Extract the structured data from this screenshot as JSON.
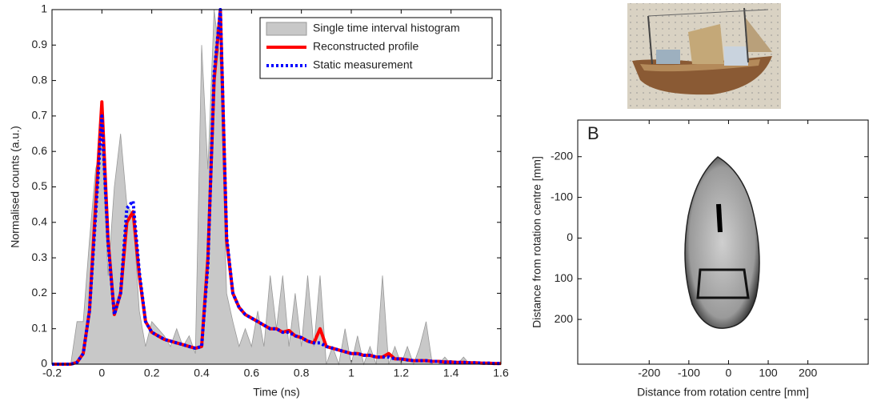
{
  "chart_data": [
    {
      "type": "line",
      "xlabel": "Time (ns)",
      "ylabel": "Normalised counts (a.u.)",
      "x": [
        -0.2,
        -0.175,
        -0.15,
        -0.125,
        -0.1,
        -0.075,
        -0.05,
        -0.025,
        0,
        0.025,
        0.05,
        0.075,
        0.1,
        0.125,
        0.15,
        0.175,
        0.2,
        0.225,
        0.25,
        0.275,
        0.3,
        0.325,
        0.35,
        0.375,
        0.4,
        0.425,
        0.45,
        0.475,
        0.5,
        0.525,
        0.55,
        0.575,
        0.6,
        0.625,
        0.65,
        0.675,
        0.7,
        0.725,
        0.75,
        0.775,
        0.8,
        0.825,
        0.85,
        0.875,
        0.9,
        0.925,
        0.95,
        0.975,
        1,
        1.025,
        1.05,
        1.075,
        1.1,
        1.125,
        1.15,
        1.175,
        1.2,
        1.225,
        1.25,
        1.275,
        1.3,
        1.325,
        1.35,
        1.375,
        1.4,
        1.425,
        1.45,
        1.475,
        1.5,
        1.525,
        1.55,
        1.575,
        1.6
      ],
      "series": [
        {
          "name": "Single time interval histogram",
          "color": "#c8c8c8",
          "style": "area",
          "values": [
            0,
            0,
            0,
            0,
            0.12,
            0.12,
            0.35,
            0.55,
            0.62,
            0.25,
            0.5,
            0.65,
            0.45,
            0.42,
            0.15,
            0.05,
            0.12,
            0.1,
            0.08,
            0.05,
            0.1,
            0.05,
            0.08,
            0.03,
            0.9,
            0.55,
            1,
            0.85,
            0.2,
            0.12,
            0.05,
            0.1,
            0.05,
            0.15,
            0.05,
            0.25,
            0.1,
            0.25,
            0.05,
            0.2,
            0.05,
            0.25,
            0.05,
            0.25,
            0,
            0.05,
            0,
            0.1,
            0,
            0.08,
            0,
            0.05,
            0,
            0.25,
            0,
            0.05,
            0,
            0.05,
            0,
            0.05,
            0.12,
            0,
            0,
            0.02,
            0,
            0,
            0.02,
            0,
            0,
            0,
            0,
            0,
            0
          ]
        },
        {
          "name": "Reconstructed profile",
          "color": "#ff0000",
          "style": "solid",
          "values": [
            0,
            0,
            0,
            0,
            0.005,
            0.03,
            0.15,
            0.45,
            0.74,
            0.35,
            0.14,
            0.2,
            0.4,
            0.43,
            0.25,
            0.12,
            0.09,
            0.08,
            0.07,
            0.065,
            0.06,
            0.055,
            0.05,
            0.045,
            0.05,
            0.3,
            0.8,
            1,
            0.35,
            0.2,
            0.16,
            0.14,
            0.13,
            0.12,
            0.11,
            0.1,
            0.1,
            0.09,
            0.095,
            0.08,
            0.075,
            0.065,
            0.06,
            0.1,
            0.05,
            0.045,
            0.04,
            0.035,
            0.03,
            0.03,
            0.025,
            0.025,
            0.02,
            0.02,
            0.03,
            0.015,
            0.015,
            0.012,
            0.01,
            0.01,
            0.01,
            0.008,
            0.008,
            0.006,
            0.006,
            0.005,
            0.005,
            0.004,
            0.004,
            0.003,
            0.003,
            0.002,
            0.002
          ]
        },
        {
          "name": "Static measurement",
          "color": "#0000ff",
          "style": "dotted",
          "values": [
            0,
            0,
            0,
            0,
            0.005,
            0.03,
            0.15,
            0.42,
            0.7,
            0.34,
            0.14,
            0.2,
            0.44,
            0.46,
            0.26,
            0.12,
            0.09,
            0.08,
            0.07,
            0.065,
            0.06,
            0.055,
            0.05,
            0.045,
            0.05,
            0.28,
            0.82,
            1,
            0.36,
            0.2,
            0.16,
            0.14,
            0.13,
            0.12,
            0.11,
            0.1,
            0.1,
            0.09,
            0.09,
            0.08,
            0.075,
            0.065,
            0.06,
            0.06,
            0.05,
            0.045,
            0.04,
            0.035,
            0.03,
            0.03,
            0.025,
            0.025,
            0.02,
            0.02,
            0.02,
            0.015,
            0.015,
            0.012,
            0.01,
            0.01,
            0.01,
            0.008,
            0.008,
            0.006,
            0.006,
            0.005,
            0.005,
            0.004,
            0.004,
            0.003,
            0.003,
            0.002,
            0.002
          ]
        }
      ],
      "xlim": [
        -0.2,
        1.6
      ],
      "xticks": [
        -0.2,
        0,
        0.2,
        0.4,
        0.6,
        0.8,
        1,
        1.2,
        1.4,
        1.6
      ],
      "ylim": [
        0,
        1
      ],
      "yticks": [
        0,
        0.1,
        0.2,
        0.3,
        0.4,
        0.5,
        0.6,
        0.7,
        0.8,
        0.9,
        1
      ],
      "legend": "upper right"
    },
    {
      "type": "image",
      "label": "B",
      "xlabel": "Distance from rotation centre [mm]",
      "ylabel": "Distance from rotation centre [mm]",
      "xlim": [
        -380,
        352
      ],
      "xticks": [
        -200,
        -100,
        0,
        100,
        200
      ],
      "ylim": [
        310,
        -290
      ],
      "yticks": [
        -200,
        -100,
        0,
        100,
        200
      ]
    }
  ]
}
